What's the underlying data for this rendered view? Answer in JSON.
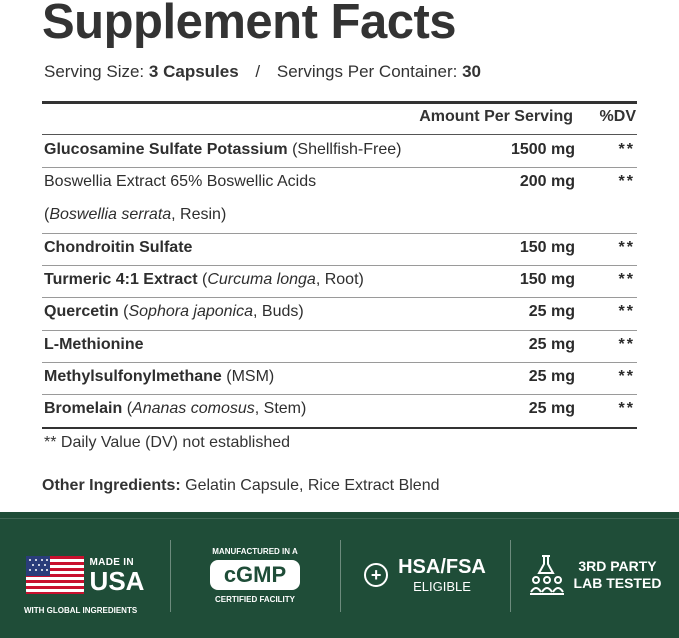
{
  "title": "Supplement Facts",
  "serving": {
    "size_label": "Serving Size:",
    "size_value": "3 Capsules",
    "separator": "/",
    "per_container_label": "Servings Per Container:",
    "per_container_value": "30"
  },
  "table": {
    "header_amount": "Amount Per Serving",
    "header_dv": "%DV",
    "rows": [
      {
        "name": "Glucosamine Sulfate Potassium",
        "detail_pre": "(Shellfish-Free)",
        "detail_italic": "",
        "detail_post": "",
        "amount": "1500 mg",
        "dv": "**"
      },
      {
        "name": "Boswellia Extract 65% Boswellic Acids",
        "detail_pre": "(",
        "detail_italic": "Boswellia serrata",
        "detail_post": ", Resin)",
        "amount": "200 mg",
        "dv": "**"
      },
      {
        "name": "Chondroitin Sulfate",
        "detail_pre": "",
        "detail_italic": "",
        "detail_post": "",
        "amount": "150 mg",
        "dv": "**"
      },
      {
        "name": "Turmeric 4:1 Extract",
        "detail_pre": "(",
        "detail_italic": "Curcuma longa",
        "detail_post": ", Root)",
        "amount": "150 mg",
        "dv": "**"
      },
      {
        "name": "Quercetin",
        "detail_pre": "(",
        "detail_italic": "Sophora japonica",
        "detail_post": ", Buds)",
        "amount": "25 mg",
        "dv": "**"
      },
      {
        "name": "L-Methionine",
        "detail_pre": "",
        "detail_italic": "",
        "detail_post": "",
        "amount": "25 mg",
        "dv": "**"
      },
      {
        "name": "Methylsulfonylmethane",
        "detail_pre": "(MSM)",
        "detail_italic": "",
        "detail_post": "",
        "amount": "25 mg",
        "dv": "**"
      },
      {
        "name": "Bromelain",
        "detail_pre": "(",
        "detail_italic": "Ananas comosus",
        "detail_post": ", Stem)",
        "amount": "25 mg",
        "dv": "**"
      }
    ]
  },
  "footnote": "** Daily Value (DV) not established",
  "other_ingredients": {
    "label": "Other Ingredients:",
    "value": "Gelatin Capsule, Rice Extract Blend"
  },
  "badges": {
    "usa": {
      "made_in": "MADE IN",
      "country": "USA",
      "sub": "WITH GLOBAL INGREDIENTS"
    },
    "cgmp": {
      "top": "MANUFACTURED IN A",
      "mark": "cGMP",
      "bottom": "CERTIFIED FACILITY"
    },
    "hsa": {
      "title": "HSA/FSA",
      "sub": "ELIGIBLE"
    },
    "lab": {
      "line1": "3RD PARTY",
      "line2": "LAB TESTED"
    }
  },
  "colors": {
    "band": "#1f4d38",
    "text": "#333333"
  }
}
